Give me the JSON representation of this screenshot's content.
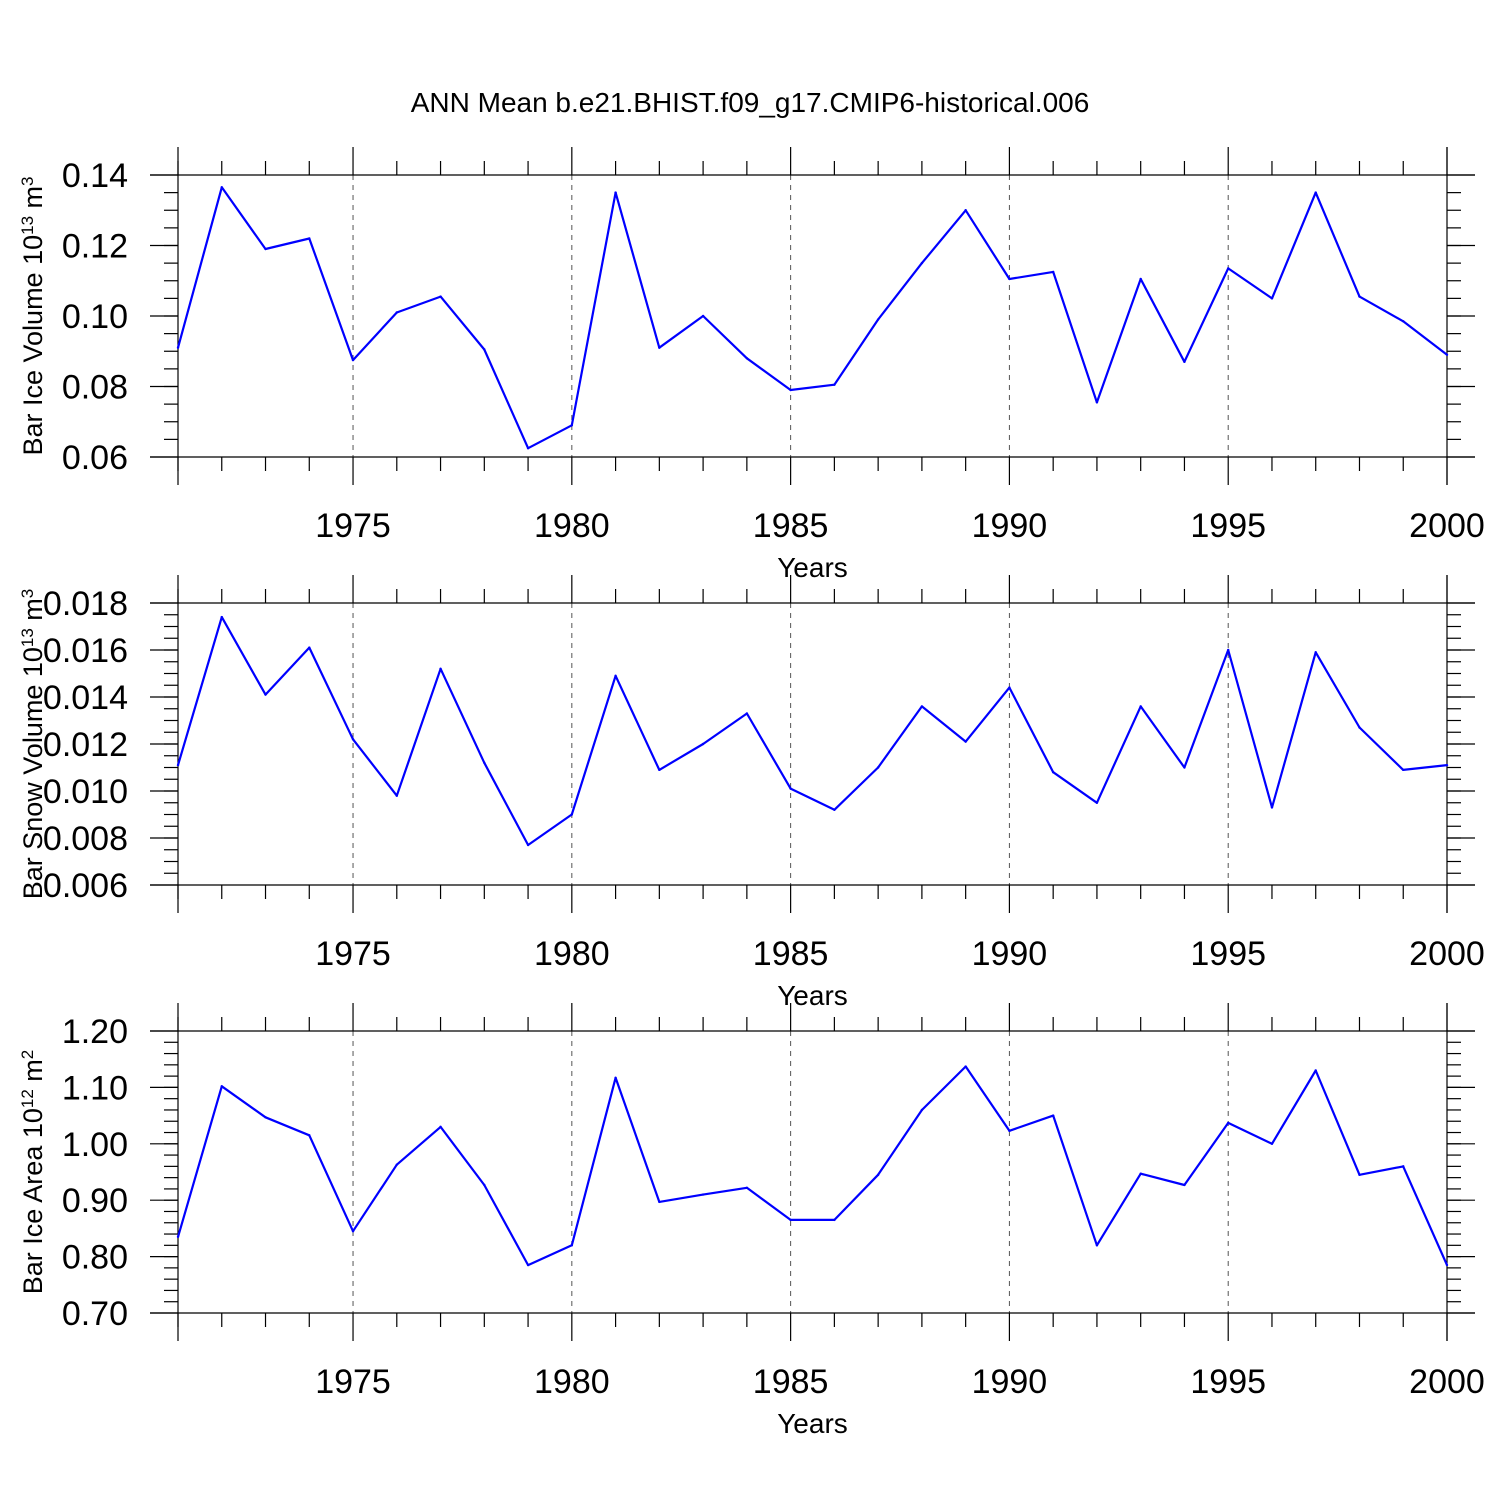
{
  "title": "ANN Mean b.e21.BHIST.f09_g17.CMIP6-historical.006",
  "colors": {
    "series": "#0000ff",
    "axis": "#000000",
    "grid": "#555555"
  },
  "chart_data": [
    {
      "type": "line",
      "title": "ANN Mean b.e21.BHIST.f09_g17.CMIP6-historical.006",
      "ylabel": {
        "main": "Bar Ice Volume 10",
        "exp": "13",
        "unit": " m",
        "unit_exp": "3"
      },
      "xlabel": "Years",
      "xlim": [
        1971,
        2000
      ],
      "ylim": [
        0.06,
        0.14
      ],
      "yticks": [
        0.06,
        0.08,
        0.1,
        0.12,
        0.14
      ],
      "ytick_labels": [
        "0.06",
        "0.08",
        "0.10",
        "0.12",
        "0.14"
      ],
      "yminor_step": 0.005,
      "xticks": [
        1975,
        1980,
        1985,
        1990,
        1995,
        2000
      ],
      "xtick_labels": [
        "1975",
        "1980",
        "1985",
        "1990",
        "1995",
        "2000"
      ],
      "grid": "x-dashed",
      "x": [
        1971,
        1972,
        1973,
        1974,
        1975,
        1976,
        1977,
        1978,
        1979,
        1980,
        1981,
        1982,
        1983,
        1984,
        1985,
        1986,
        1987,
        1988,
        1989,
        1990,
        1991,
        1992,
        1993,
        1994,
        1995,
        1996,
        1997,
        1998,
        1999,
        2000
      ],
      "values": [
        0.091,
        0.1365,
        0.119,
        0.122,
        0.0875,
        0.101,
        0.1055,
        0.0905,
        0.0625,
        0.069,
        0.135,
        0.091,
        0.1,
        0.088,
        0.079,
        0.0805,
        0.099,
        0.115,
        0.13,
        0.1105,
        0.1125,
        0.0755,
        0.1105,
        0.087,
        0.1135,
        0.105,
        0.135,
        0.1055,
        0.0985,
        0.089
      ]
    },
    {
      "type": "line",
      "ylabel": {
        "main": "Bar Snow Volume 10",
        "exp": "13",
        "unit": " m",
        "unit_exp": "3"
      },
      "xlabel": "Years",
      "xlim": [
        1971,
        2000
      ],
      "ylim": [
        0.006,
        0.018
      ],
      "yticks": [
        0.006,
        0.008,
        0.01,
        0.012,
        0.014,
        0.016,
        0.018
      ],
      "ytick_labels": [
        "0.006",
        "0.008",
        "0.010",
        "0.012",
        "0.014",
        "0.016",
        "0.018"
      ],
      "yminor_step": 0.0005,
      "xticks": [
        1975,
        1980,
        1985,
        1990,
        1995,
        2000
      ],
      "xtick_labels": [
        "1975",
        "1980",
        "1985",
        "1990",
        "1995",
        "2000"
      ],
      "grid": "x-dashed",
      "x": [
        1971,
        1972,
        1973,
        1974,
        1975,
        1976,
        1977,
        1978,
        1979,
        1980,
        1981,
        1982,
        1983,
        1984,
        1985,
        1986,
        1987,
        1988,
        1989,
        1990,
        1991,
        1992,
        1993,
        1994,
        1995,
        1996,
        1997,
        1998,
        1999,
        2000
      ],
      "values": [
        0.0111,
        0.0174,
        0.0141,
        0.0161,
        0.0122,
        0.0098,
        0.0152,
        0.0112,
        0.0077,
        0.009,
        0.0149,
        0.0109,
        0.012,
        0.0133,
        0.0101,
        0.0092,
        0.011,
        0.0136,
        0.0121,
        0.0144,
        0.0108,
        0.0095,
        0.0136,
        0.011,
        0.016,
        0.0093,
        0.0159,
        0.0127,
        0.0109,
        0.0111
      ]
    },
    {
      "type": "line",
      "ylabel": {
        "main": "Bar Ice Area 10",
        "exp": "12",
        "unit": " m",
        "unit_exp": "2"
      },
      "xlabel": "Years",
      "xlim": [
        1971,
        2000
      ],
      "ylim": [
        0.7,
        1.2
      ],
      "yticks": [
        0.7,
        0.8,
        0.9,
        1.0,
        1.1,
        1.2
      ],
      "ytick_labels": [
        "0.70",
        "0.80",
        "0.90",
        "1.00",
        "1.10",
        "1.20"
      ],
      "yminor_step": 0.02,
      "xticks": [
        1975,
        1980,
        1985,
        1990,
        1995,
        2000
      ],
      "xtick_labels": [
        "1975",
        "1980",
        "1985",
        "1990",
        "1995",
        "2000"
      ],
      "grid": "x-dashed",
      "x": [
        1971,
        1972,
        1973,
        1974,
        1975,
        1976,
        1977,
        1978,
        1979,
        1980,
        1981,
        1982,
        1983,
        1984,
        1985,
        1986,
        1987,
        1988,
        1989,
        1990,
        1991,
        1992,
        1993,
        1994,
        1995,
        1996,
        1997,
        1998,
        1999,
        2000
      ],
      "values": [
        0.835,
        1.102,
        1.047,
        1.015,
        0.845,
        0.963,
        1.03,
        0.927,
        0.785,
        0.82,
        1.117,
        0.897,
        0.91,
        0.922,
        0.865,
        0.865,
        0.945,
        1.06,
        1.137,
        1.023,
        1.05,
        0.82,
        0.947,
        0.927,
        1.037,
        1.0,
        1.13,
        0.945,
        0.96,
        0.785
      ]
    }
  ]
}
